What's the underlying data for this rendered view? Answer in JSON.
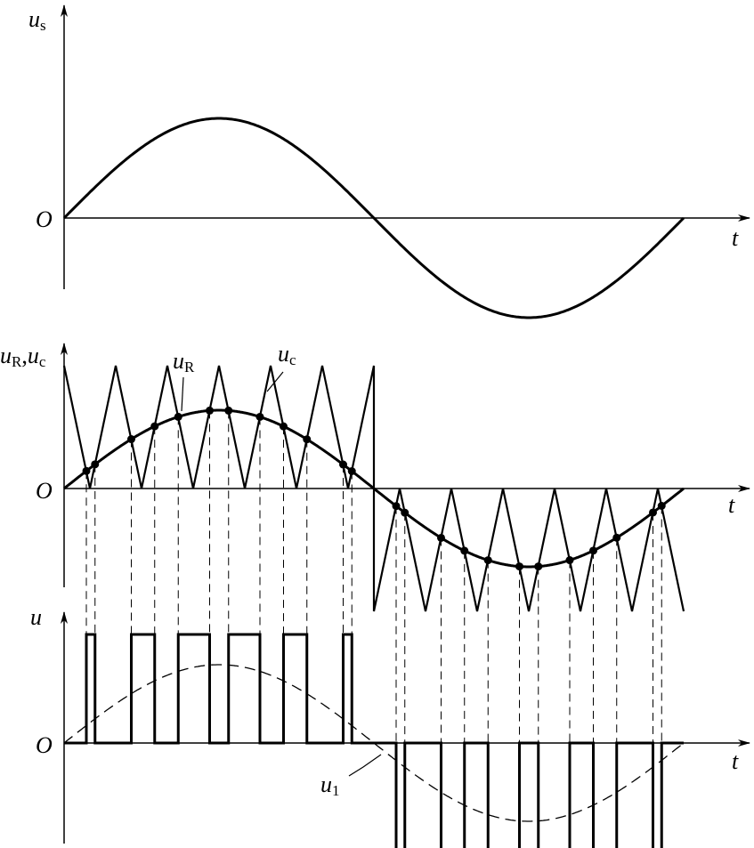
{
  "panels": [
    {
      "y_label": "u",
      "y_label_sub": "s",
      "origin": "O",
      "x_label": "t"
    },
    {
      "y_label_1": "u",
      "y_label_1_sub": "R",
      "y_label_sep": ",",
      "y_label_2": "u",
      "y_label_2_sub": "c",
      "origin": "O",
      "x_label": "t",
      "annotations": [
        {
          "text": "u",
          "sub": "R"
        },
        {
          "text": "u",
          "sub": "c"
        }
      ]
    },
    {
      "y_label": "u",
      "origin": "O",
      "x_label": "t",
      "annotations": [
        {
          "text": "u",
          "sub": "1"
        }
      ]
    }
  ]
}
